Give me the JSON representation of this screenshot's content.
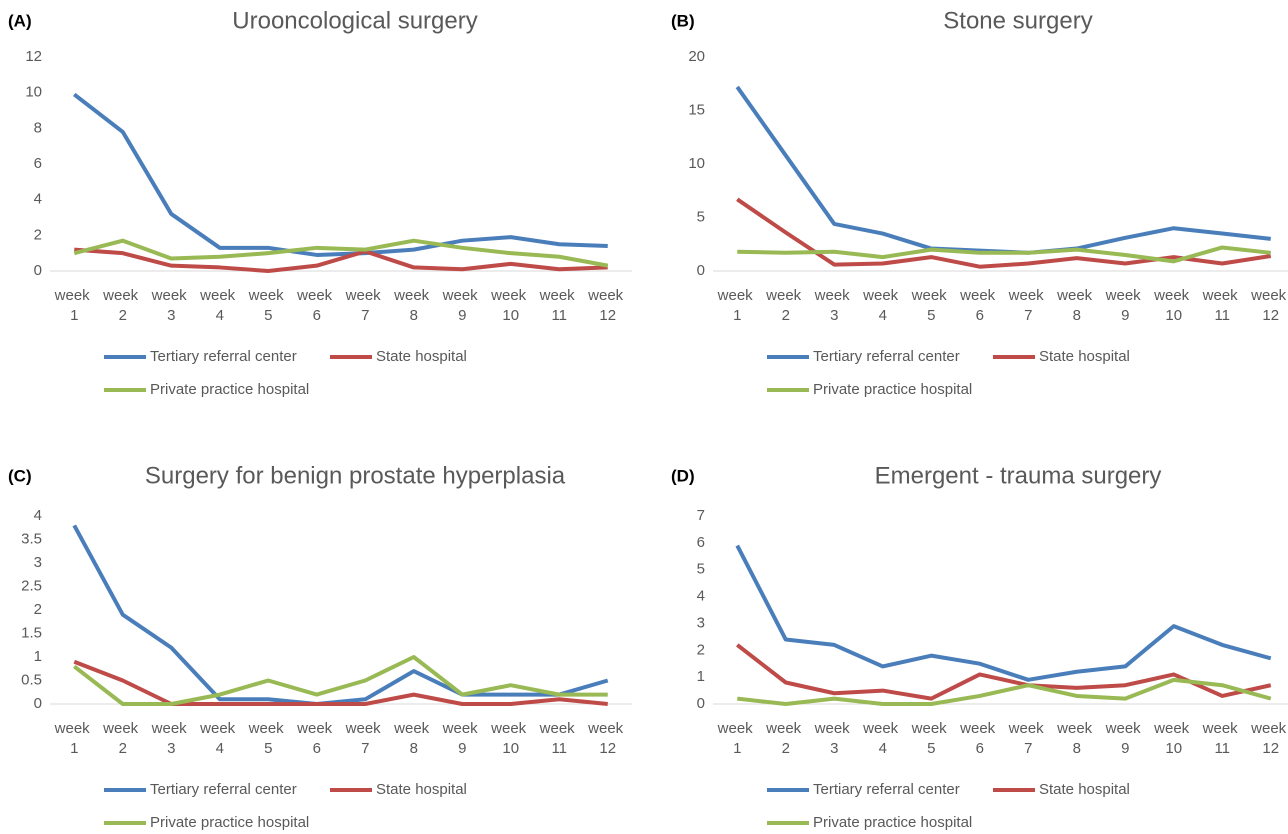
{
  "chart_data": [
    {
      "type": "line",
      "label": "(A)",
      "title": "Urooncological surgery",
      "categories": [
        "week 1",
        "week 2",
        "week 3",
        "week 4",
        "week 5",
        "week 6",
        "week 7",
        "week 8",
        "week 9",
        "week 10",
        "week 11",
        "week 12"
      ],
      "ylim": [
        0,
        12
      ],
      "yticks": [
        0,
        2,
        4,
        6,
        8,
        10,
        12
      ],
      "grid": false,
      "series": [
        {
          "name": "Tertiary referral center",
          "color": "#4a7ebb",
          "values": [
            9.9,
            7.8,
            3.2,
            1.3,
            1.3,
            0.9,
            1.0,
            1.2,
            1.7,
            1.9,
            1.5,
            1.4
          ]
        },
        {
          "name": "State hospital",
          "color": "#be4b48",
          "values": [
            1.2,
            1.0,
            0.3,
            0.2,
            0.0,
            0.3,
            1.1,
            0.2,
            0.1,
            0.4,
            0.1,
            0.2
          ]
        },
        {
          "name": "Private practice hospital",
          "color": "#98b954",
          "values": [
            1.0,
            1.7,
            0.7,
            0.8,
            1.0,
            1.3,
            1.2,
            1.7,
            1.3,
            1.0,
            0.8,
            0.3
          ]
        }
      ]
    },
    {
      "type": "line",
      "label": "(B)",
      "title": "Stone surgery",
      "categories": [
        "week 1",
        "week 2",
        "week 3",
        "week 4",
        "week 5",
        "week 6",
        "week 7",
        "week 8",
        "week 9",
        "week 10",
        "week 11",
        "week 12"
      ],
      "ylim": [
        0,
        20
      ],
      "yticks": [
        0,
        5,
        10,
        15,
        20
      ],
      "grid": false,
      "series": [
        {
          "name": "Tertiary referral center",
          "color": "#4a7ebb",
          "values": [
            17.2,
            10.8,
            4.4,
            3.5,
            2.1,
            1.9,
            1.7,
            2.1,
            3.1,
            4.0,
            3.5,
            3.0
          ]
        },
        {
          "name": "State hospital",
          "color": "#be4b48",
          "values": [
            6.7,
            3.6,
            0.6,
            0.7,
            1.3,
            0.4,
            0.7,
            1.2,
            0.7,
            1.3,
            0.7,
            1.4
          ]
        },
        {
          "name": "Private practice hospital",
          "color": "#98b954",
          "values": [
            1.8,
            1.7,
            1.8,
            1.3,
            2.0,
            1.7,
            1.7,
            2.0,
            1.5,
            0.9,
            2.2,
            1.7
          ]
        }
      ]
    },
    {
      "type": "line",
      "label": "(C)",
      "title": "Surgery for benign prostate hyperplasia",
      "categories": [
        "week 1",
        "week 2",
        "week 3",
        "week 4",
        "week 5",
        "week 6",
        "week 7",
        "week 8",
        "week 9",
        "week 10",
        "week 11",
        "week 12"
      ],
      "ylim": [
        0,
        4
      ],
      "yticks": [
        0,
        0.5,
        1,
        1.5,
        2,
        2.5,
        3,
        3.5,
        4
      ],
      "grid": false,
      "series": [
        {
          "name": "Tertiary referral center",
          "color": "#4a7ebb",
          "values": [
            3.8,
            1.9,
            1.2,
            0.1,
            0.1,
            0,
            0.1,
            0.7,
            0.2,
            0.2,
            0.2,
            0.5
          ]
        },
        {
          "name": "State hospital",
          "color": "#be4b48",
          "values": [
            0.9,
            0.5,
            0,
            0,
            0,
            0,
            0,
            0.2,
            0,
            0,
            0.1,
            0
          ]
        },
        {
          "name": "Private practice hospital",
          "color": "#98b954",
          "values": [
            0.8,
            0,
            0,
            0.2,
            0.5,
            0.2,
            0.5,
            1.0,
            0.2,
            0.4,
            0.2,
            0.2
          ]
        }
      ]
    },
    {
      "type": "line",
      "label": "(D)",
      "title": "Emergent - trauma surgery",
      "categories": [
        "week 1",
        "week 2",
        "week 3",
        "week 4",
        "week 5",
        "week 6",
        "week 7",
        "week 8",
        "week 9",
        "week 10",
        "week 11",
        "week 12"
      ],
      "ylim": [
        0,
        7
      ],
      "yticks": [
        0,
        1,
        2,
        3,
        4,
        5,
        6,
        7
      ],
      "grid": false,
      "series": [
        {
          "name": "Tertiary referral center",
          "color": "#4a7ebb",
          "values": [
            5.9,
            2.4,
            2.2,
            1.4,
            1.8,
            1.5,
            0.9,
            1.2,
            1.4,
            2.9,
            2.2,
            1.7
          ]
        },
        {
          "name": "State hospital",
          "color": "#be4b48",
          "values": [
            2.2,
            0.8,
            0.4,
            0.5,
            0.2,
            1.1,
            0.7,
            0.6,
            0.7,
            1.1,
            0.3,
            0.7
          ]
        },
        {
          "name": "Private practice hospital",
          "color": "#98b954",
          "values": [
            0.2,
            0,
            0.2,
            0,
            0,
            0.3,
            0.7,
            0.3,
            0.2,
            0.9,
            0.7,
            0.2
          ]
        }
      ]
    }
  ]
}
